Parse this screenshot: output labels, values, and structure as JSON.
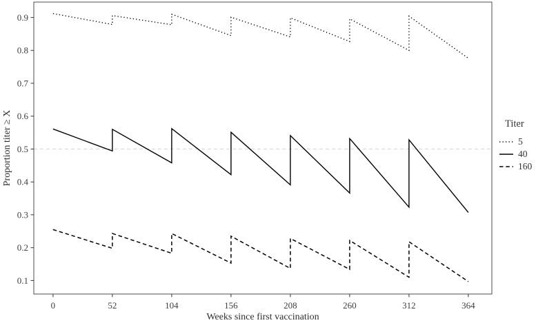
{
  "chart_data": {
    "type": "line",
    "title": "",
    "xlabel": "Weeks since first vaccination",
    "ylabel": "Proportion titer ≥ X",
    "legend_title": "Titer",
    "legend_position": "right",
    "grid": "off",
    "line_color": "#000000",
    "x_ticks": [
      0,
      52,
      104,
      156,
      208,
      260,
      312,
      364
    ],
    "y_ticks": [
      0.1,
      0.2,
      0.3,
      0.4,
      0.5,
      0.6,
      0.7,
      0.8,
      0.9
    ],
    "xlim": [
      -16.9,
      384.6
    ],
    "ylim": [
      0.059,
      0.947
    ],
    "reference_line": {
      "y": 0.5,
      "style": "dashed",
      "color": "#dadada"
    },
    "series": [
      {
        "name": "5",
        "style": "dotted",
        "color": "#000000",
        "x": [
          0,
          52,
          52,
          104,
          104,
          156,
          156,
          208,
          208,
          260,
          260,
          312,
          312,
          364
        ],
        "y": [
          0.912,
          0.879,
          0.906,
          0.878,
          0.91,
          0.845,
          0.901,
          0.841,
          0.899,
          0.827,
          0.896,
          0.8,
          0.904,
          0.776
        ]
      },
      {
        "name": "40",
        "style": "solid",
        "color": "#000000",
        "x": [
          0,
          52,
          52,
          104,
          104,
          156,
          156,
          208,
          208,
          260,
          260,
          312,
          312,
          364
        ],
        "y": [
          0.561,
          0.494,
          0.56,
          0.458,
          0.562,
          0.422,
          0.551,
          0.391,
          0.541,
          0.366,
          0.532,
          0.323,
          0.528,
          0.307
        ]
      },
      {
        "name": "160",
        "style": "dashed",
        "color": "#000000",
        "x": [
          0,
          52,
          52,
          104,
          104,
          156,
          156,
          208,
          208,
          260,
          260,
          312,
          312,
          364
        ],
        "y": [
          0.255,
          0.198,
          0.243,
          0.183,
          0.243,
          0.153,
          0.235,
          0.137,
          0.228,
          0.134,
          0.222,
          0.11,
          0.218,
          0.097
        ]
      }
    ]
  }
}
